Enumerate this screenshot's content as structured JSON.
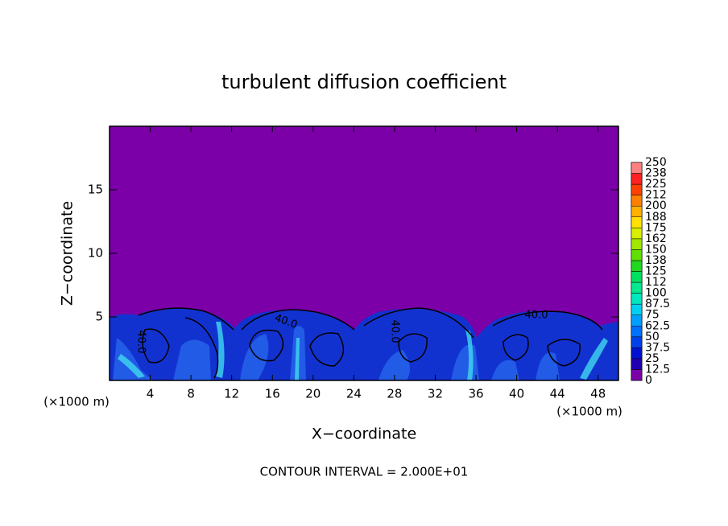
{
  "chart_data": {
    "type": "contour",
    "title": "turbulent diffusion coefficient",
    "x_label": "X−coordinate",
    "y_label": "Z−coordinate",
    "x_unit_label": "(×1000 m)",
    "y_unit_label": "(×1000 m)",
    "footer": "CONTOUR INTERVAL = 2.000E+01",
    "xlim": [
      0,
      50
    ],
    "ylim": [
      0,
      20
    ],
    "xticks": [
      4,
      8,
      12,
      16,
      20,
      24,
      28,
      32,
      36,
      40,
      44,
      48
    ],
    "yticks": [
      5,
      10,
      15
    ],
    "background_color": "#7b00a8",
    "contour_labels": [
      "40.0",
      "40.0",
      "40.0",
      "40.0"
    ],
    "colorbar": {
      "levels": [
        0,
        12.5,
        25,
        37.5,
        50,
        62.5,
        75,
        87.5,
        100,
        {
          "value": 112.5,
          "label": "112"
        },
        125,
        {
          "value": 137.5,
          "label": "138"
        },
        150,
        {
          "value": 162.5,
          "label": "162"
        },
        175,
        {
          "value": 187.5,
          "label": "188"
        },
        200,
        {
          "value": 212.5,
          "label": "212"
        },
        225,
        {
          "value": 237.5,
          "label": "238"
        },
        250
      ],
      "colors": [
        "#7b00a8",
        "#2000b0",
        "#0010d0",
        "#0040e8",
        "#0070ff",
        "#00a0ff",
        "#00d0f0",
        "#00e8c0",
        "#00e890",
        "#00e060",
        "#20d820",
        "#60e000",
        "#a0e800",
        "#d8f000",
        "#ffe000",
        "#ffb000",
        "#ff8000",
        "#ff4000",
        "#ff2020",
        "#ff8080"
      ]
    }
  }
}
